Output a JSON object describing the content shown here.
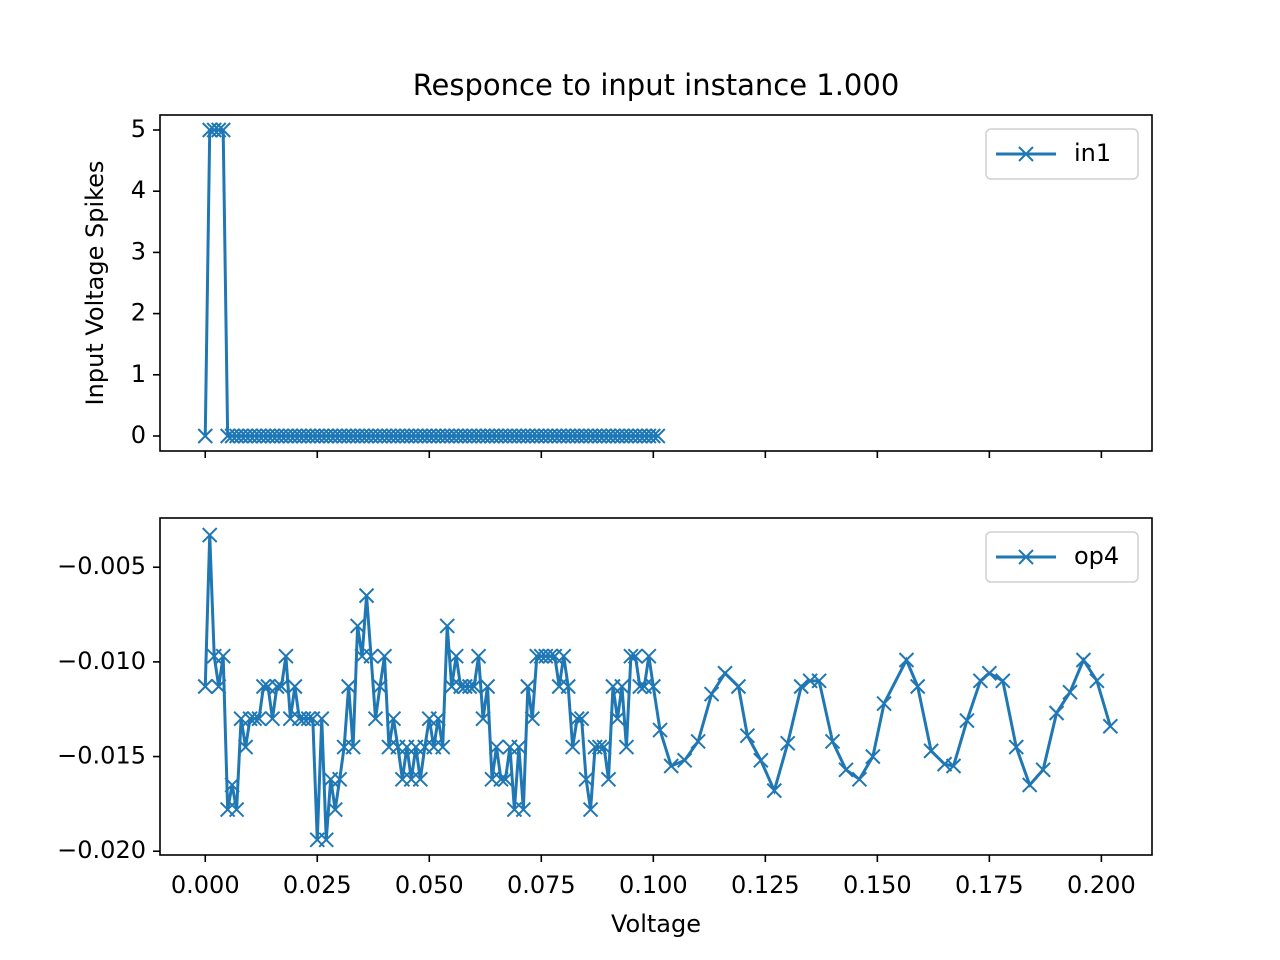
{
  "chart_data": [
    {
      "type": "line",
      "title": "Responce to input instance 1.000",
      "ylabel": "Input Voltage Spikes",
      "sharex": true,
      "legend": "upper right",
      "x": [
        0,
        0.001,
        0.002,
        0.003,
        0.004,
        0.005,
        0.006,
        0.007,
        0.008,
        0.009,
        0.01,
        0.011,
        0.012,
        0.013,
        0.014,
        0.015,
        0.016,
        0.017,
        0.018,
        0.019,
        0.02,
        0.021,
        0.022,
        0.023,
        0.024,
        0.025,
        0.026,
        0.027,
        0.028,
        0.029,
        0.03,
        0.031,
        0.032,
        0.033,
        0.034,
        0.035,
        0.036,
        0.037,
        0.038,
        0.039,
        0.04,
        0.041,
        0.042,
        0.043,
        0.044,
        0.045,
        0.046,
        0.047,
        0.048,
        0.049,
        0.05,
        0.051,
        0.052,
        0.053,
        0.054,
        0.055,
        0.056,
        0.057,
        0.058,
        0.059,
        0.06,
        0.061,
        0.062,
        0.063,
        0.064,
        0.065,
        0.066,
        0.067,
        0.068,
        0.069,
        0.07,
        0.071,
        0.072,
        0.073,
        0.074,
        0.075,
        0.076,
        0.077,
        0.078,
        0.079,
        0.08,
        0.081,
        0.082,
        0.083,
        0.084,
        0.085,
        0.086,
        0.087,
        0.088,
        0.089,
        0.09,
        0.091,
        0.092,
        0.093,
        0.094,
        0.095,
        0.096,
        0.097,
        0.098,
        0.099,
        0.1,
        0.101
      ],
      "series": [
        {
          "name": "in1",
          "color": "#1f77b4",
          "marker": "x",
          "values": [
            0,
            5,
            5,
            5,
            5,
            0,
            0,
            0,
            0,
            0,
            0,
            0,
            0,
            0,
            0,
            0,
            0,
            0,
            0,
            0,
            0,
            0,
            0,
            0,
            0,
            0,
            0,
            0,
            0,
            0,
            0,
            0,
            0,
            0,
            0,
            0,
            0,
            0,
            0,
            0,
            0,
            0,
            0,
            0,
            0,
            0,
            0,
            0,
            0,
            0,
            0,
            0,
            0,
            0,
            0,
            0,
            0,
            0,
            0,
            0,
            0,
            0,
            0,
            0,
            0,
            0,
            0,
            0,
            0,
            0,
            0,
            0,
            0,
            0,
            0,
            0,
            0,
            0,
            0,
            0,
            0,
            0,
            0,
            0,
            0,
            0,
            0,
            0,
            0,
            0,
            0,
            0,
            0,
            0,
            0,
            0,
            0,
            0,
            0,
            0,
            0,
            0
          ]
        }
      ],
      "xlim": [
        -0.0101,
        0.2113
      ],
      "ylim": [
        -0.245,
        5.245
      ],
      "xticks": [
        0,
        0.025,
        0.05,
        0.075,
        0.1,
        0.125,
        0.15,
        0.175,
        0.2
      ],
      "yticks": [
        0,
        1,
        2,
        3,
        4,
        5
      ]
    },
    {
      "type": "line",
      "xlabel": "Voltage",
      "legend": "upper right",
      "x": [
        0,
        0.001,
        0.002,
        0.003,
        0.004,
        0.005,
        0.006,
        0.007,
        0.008,
        0.009,
        0.01,
        0.011,
        0.012,
        0.013,
        0.014,
        0.015,
        0.016,
        0.017,
        0.018,
        0.019,
        0.02,
        0.021,
        0.022,
        0.023,
        0.024,
        0.025,
        0.026,
        0.027,
        0.028,
        0.029,
        0.03,
        0.031,
        0.032,
        0.033,
        0.034,
        0.035,
        0.036,
        0.037,
        0.038,
        0.039,
        0.04,
        0.041,
        0.042,
        0.043,
        0.044,
        0.045,
        0.046,
        0.047,
        0.048,
        0.049,
        0.05,
        0.051,
        0.052,
        0.053,
        0.054,
        0.055,
        0.056,
        0.057,
        0.058,
        0.059,
        0.06,
        0.061,
        0.062,
        0.063,
        0.064,
        0.065,
        0.066,
        0.067,
        0.068,
        0.069,
        0.07,
        0.071,
        0.072,
        0.073,
        0.074,
        0.075,
        0.076,
        0.077,
        0.078,
        0.079,
        0.08,
        0.081,
        0.082,
        0.083,
        0.084,
        0.085,
        0.086,
        0.087,
        0.088,
        0.089,
        0.09,
        0.091,
        0.092,
        0.093,
        0.094,
        0.095,
        0.096,
        0.097,
        0.098,
        0.099,
        0.1,
        0.1015,
        0.104,
        0.107,
        0.11,
        0.113,
        0.116,
        0.119,
        0.121,
        0.124,
        0.127,
        0.13,
        0.133,
        0.135,
        0.137,
        0.14,
        0.143,
        0.146,
        0.149,
        0.1515,
        0.1565,
        0.159,
        0.162,
        0.165,
        0.167,
        0.17,
        0.173,
        0.175,
        0.178,
        0.181,
        0.184,
        0.187,
        0.19,
        0.193,
        0.196,
        0.199,
        0.202
      ],
      "series": [
        {
          "name": "op4",
          "color": "#1f77b4",
          "marker": "x",
          "values": [
            -0.0113,
            -0.0033,
            -0.0097,
            -0.0113,
            -0.0097,
            -0.0178,
            -0.0165,
            -0.0178,
            -0.013,
            -0.0145,
            -0.013,
            -0.013,
            -0.013,
            -0.0113,
            -0.0113,
            -0.013,
            -0.0113,
            -0.0113,
            -0.0097,
            -0.013,
            -0.0113,
            -0.013,
            -0.013,
            -0.013,
            -0.013,
            -0.0194,
            -0.013,
            -0.0194,
            -0.0162,
            -0.0178,
            -0.0162,
            -0.0145,
            -0.0113,
            -0.0145,
            -0.0081,
            -0.0097,
            -0.0065,
            -0.0097,
            -0.013,
            -0.0113,
            -0.0097,
            -0.0145,
            -0.013,
            -0.0145,
            -0.0162,
            -0.0145,
            -0.0162,
            -0.0145,
            -0.0162,
            -0.0145,
            -0.013,
            -0.0145,
            -0.013,
            -0.0145,
            -0.0081,
            -0.0113,
            -0.0097,
            -0.0113,
            -0.0113,
            -0.0113,
            -0.0113,
            -0.0097,
            -0.013,
            -0.0113,
            -0.0162,
            -0.0145,
            -0.0162,
            -0.0162,
            -0.0145,
            -0.0178,
            -0.0145,
            -0.0178,
            -0.0113,
            -0.013,
            -0.0097,
            -0.0097,
            -0.0097,
            -0.0097,
            -0.0097,
            -0.0113,
            -0.0097,
            -0.0113,
            -0.0145,
            -0.013,
            -0.013,
            -0.0162,
            -0.0178,
            -0.0145,
            -0.0145,
            -0.0145,
            -0.0162,
            -0.0113,
            -0.013,
            -0.0113,
            -0.0145,
            -0.0097,
            -0.0097,
            -0.0113,
            -0.0113,
            -0.0097,
            -0.0113,
            -0.0136,
            -0.0155,
            -0.0152,
            -0.0142,
            -0.0117,
            -0.0106,
            -0.0113,
            -0.0139,
            -0.0152,
            -0.0168,
            -0.0143,
            -0.0113,
            -0.011,
            -0.011,
            -0.0142,
            -0.0157,
            -0.0162,
            -0.015,
            -0.0122,
            -0.0099,
            -0.0113,
            -0.0147,
            -0.0154,
            -0.0155,
            -0.0131,
            -0.011,
            -0.0106,
            -0.011,
            -0.0145,
            -0.0165,
            -0.0157,
            -0.0127,
            -0.0116,
            -0.0099,
            -0.011,
            -0.0134
          ]
        }
      ],
      "xlim": [
        -0.0101,
        0.2113
      ],
      "ylim": [
        -0.0202,
        -0.0024
      ],
      "xticks": [
        {
          "value": 0,
          "label": "0.000"
        },
        0.025,
        {
          "value": 0.05,
          "label": "0.050"
        },
        0.075,
        {
          "value": 0.1,
          "label": "0.100"
        },
        0.125,
        {
          "value": 0.15,
          "label": "0.150"
        },
        0.175,
        {
          "value": 0.2,
          "label": "0.200"
        }
      ],
      "yticks": [
        {
          "value": -0.005,
          "label": "−0.005"
        },
        {
          "value": -0.01,
          "label": "−0.010"
        },
        {
          "value": -0.015,
          "label": "−0.015"
        },
        {
          "value": -0.02,
          "label": "−0.020"
        }
      ]
    }
  ]
}
